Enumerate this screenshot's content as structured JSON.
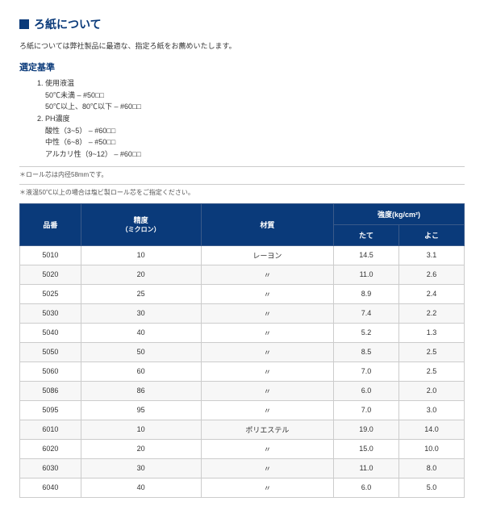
{
  "title": "ろ紙について",
  "intro": "ろ紙については弊社製品に最適な、指定ろ紙をお薦めいたします。",
  "criteria_heading": "選定基準",
  "criteria": [
    {
      "label": "使用液温",
      "lines": [
        "50℃未満 – #50□□",
        "50℃以上、80℃以下 – #60□□"
      ]
    },
    {
      "label": "PH濃度",
      "lines": [
        "酸性（3~5） – #60□□",
        "中性（6~8） – #50□□",
        "アルカリ性（9~12） – #60□□"
      ]
    }
  ],
  "notes": [
    "＊ロール芯は内径58mmです。",
    "＊液温50℃以上の場合は塩ビ製ロール芯をご指定ください。"
  ],
  "table": {
    "headers": {
      "col1": "品番",
      "col2": "精度",
      "col2_sub": "（ミクロン）",
      "col3": "材質",
      "col4": "強度(kg/cm²)",
      "col4a": "たて",
      "col4b": "よこ"
    },
    "rows": [
      {
        "c1": "5010",
        "c2": "10",
        "c3": "レーヨン",
        "c4": "14.5",
        "c5": "3.1"
      },
      {
        "c1": "5020",
        "c2": "20",
        "c3": "〃",
        "c4": "11.0",
        "c5": "2.6"
      },
      {
        "c1": "5025",
        "c2": "25",
        "c3": "〃",
        "c4": "8.9",
        "c5": "2.4"
      },
      {
        "c1": "5030",
        "c2": "30",
        "c3": "〃",
        "c4": "7.4",
        "c5": "2.2"
      },
      {
        "c1": "5040",
        "c2": "40",
        "c3": "〃",
        "c4": "5.2",
        "c5": "1.3"
      },
      {
        "c1": "5050",
        "c2": "50",
        "c3": "〃",
        "c4": "8.5",
        "c5": "2.5"
      },
      {
        "c1": "5060",
        "c2": "60",
        "c3": "〃",
        "c4": "7.0",
        "c5": "2.5"
      },
      {
        "c1": "5086",
        "c2": "86",
        "c3": "〃",
        "c4": "6.0",
        "c5": "2.0"
      },
      {
        "c1": "5095",
        "c2": "95",
        "c3": "〃",
        "c4": "7.0",
        "c5": "3.0"
      },
      {
        "c1": "6010",
        "c2": "10",
        "c3": "ポリエステル",
        "c4": "19.0",
        "c5": "14.0"
      },
      {
        "c1": "6020",
        "c2": "20",
        "c3": "〃",
        "c4": "15.0",
        "c5": "10.0"
      },
      {
        "c1": "6030",
        "c2": "30",
        "c3": "〃",
        "c4": "11.0",
        "c5": "8.0"
      },
      {
        "c1": "6040",
        "c2": "40",
        "c3": "〃",
        "c4": "6.0",
        "c5": "5.0"
      }
    ]
  }
}
